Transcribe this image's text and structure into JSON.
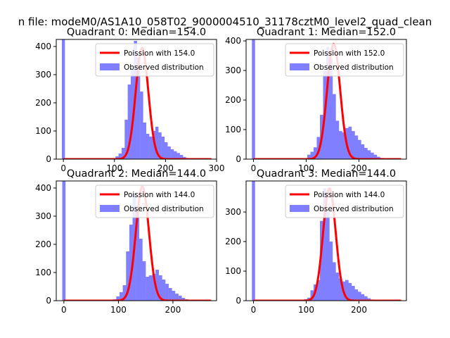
{
  "figure_title": "n file: modeM0/AS1A10_058T02_9000004510_31178cztM0_level2_quad_clean",
  "colors": {
    "histogram": "#7f7fff",
    "poisson": "#ff0000",
    "axes": "#000000",
    "legend_edge": "#cccccc"
  },
  "chart_data": [
    {
      "type": "bar",
      "title": "Quadrant 0: Median=154.0",
      "median": 154.0,
      "xlim": [
        -14,
        300
      ],
      "ylim": [
        0,
        425
      ],
      "xticks": [
        0,
        100,
        200,
        300
      ],
      "yticks": [
        0,
        100,
        200,
        300,
        400
      ],
      "legend_position": "upper right",
      "legend": [
        "Poission with 154.0",
        "Observed distribution"
      ],
      "bin_width": 6,
      "spike": {
        "x": 0,
        "value": 425
      },
      "hist_start": 96,
      "hist_values": [
        2,
        10,
        20,
        40,
        140,
        265,
        320,
        420,
        360,
        240,
        130,
        90,
        80,
        100,
        115,
        95,
        80,
        60,
        45,
        35,
        28,
        22,
        15,
        8,
        4,
        2,
        1
      ],
      "poisson_peak": 395,
      "poisson_range": [
        0,
        290
      ]
    },
    {
      "type": "bar",
      "title": "Quadrant 1: Median=152.0",
      "median": 152.0,
      "xlim": [
        -14,
        290
      ],
      "ylim": [
        0,
        405
      ],
      "xticks": [
        0,
        100,
        200
      ],
      "yticks": [
        0,
        100,
        200,
        300,
        400
      ],
      "legend_position": "upper right",
      "legend": [
        "Poission with 152.0",
        "Observed distribution"
      ],
      "bin_width": 6,
      "spike": {
        "x": 0,
        "value": 405
      },
      "hist_start": 96,
      "hist_values": [
        2,
        15,
        25,
        40,
        75,
        150,
        300,
        380,
        340,
        220,
        130,
        95,
        90,
        105,
        110,
        95,
        80,
        65,
        50,
        38,
        30,
        22,
        15,
        8,
        4,
        2,
        1
      ],
      "poisson_peak": 390,
      "poisson_range": [
        0,
        280
      ]
    },
    {
      "type": "bar",
      "title": "Quadrant 2: Median=144.0",
      "median": 144.0,
      "xlim": [
        -14,
        280
      ],
      "ylim": [
        0,
        425
      ],
      "xticks": [
        0,
        100,
        200
      ],
      "yticks": [
        0,
        100,
        200,
        300,
        400
      ],
      "legend_position": "upper right",
      "legend": [
        "Poission with 144.0",
        "Observed distribution"
      ],
      "bin_width": 6,
      "spike": {
        "x": 0,
        "value": 425
      },
      "hist_start": 90,
      "hist_values": [
        5,
        15,
        30,
        55,
        175,
        270,
        380,
        330,
        220,
        140,
        85,
        90,
        95,
        110,
        90,
        75,
        60,
        45,
        35,
        25,
        18,
        10,
        5,
        3,
        1
      ],
      "poisson_peak": 405,
      "poisson_range": [
        0,
        270
      ]
    },
    {
      "type": "bar",
      "title": "Quadrant 3: Median=144.0",
      "median": 144.0,
      "xlim": [
        -14,
        290
      ],
      "ylim": [
        0,
        405
      ],
      "xticks": [
        0,
        100,
        200
      ],
      "yticks": [
        0,
        100,
        200,
        300
      ],
      "legend_position": "upper right",
      "legend": [
        "Poission with 144.0",
        "Observed distribution"
      ],
      "bin_width": 6,
      "spike": {
        "x": 0,
        "value": 405
      },
      "hist_start": 96,
      "hist_values": [
        5,
        10,
        35,
        55,
        70,
        270,
        380,
        300,
        200,
        130,
        95,
        75,
        65,
        70,
        60,
        50,
        38,
        30,
        22,
        15,
        8,
        4,
        2,
        1
      ],
      "poisson_peak": 380,
      "poisson_range": [
        0,
        280
      ]
    }
  ]
}
